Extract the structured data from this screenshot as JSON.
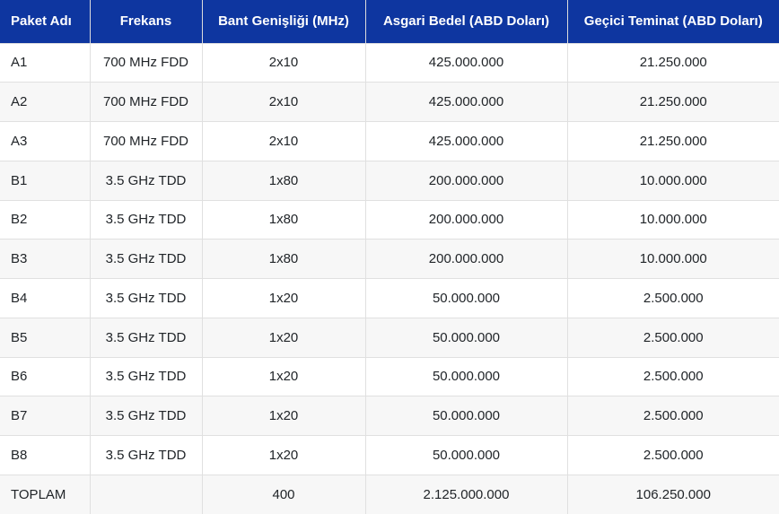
{
  "colors": {
    "header_bg": "#0e36a0",
    "header_text": "#ffffff",
    "stripe_bg": "#f7f7f7",
    "border": "#e0e0e0",
    "body_text": "#212529"
  },
  "table": {
    "columns": [
      "Paket Adı",
      "Frekans",
      "Bant Genişliği (MHz)",
      "Asgari Bedel (ABD Doları)",
      "Geçici Teminat (ABD Doları)"
    ],
    "rows": [
      [
        "A1",
        "700 MHz FDD",
        "2x10",
        "425.000.000",
        "21.250.000"
      ],
      [
        "A2",
        "700 MHz FDD",
        "2x10",
        "425.000.000",
        "21.250.000"
      ],
      [
        "A3",
        "700 MHz FDD",
        "2x10",
        "425.000.000",
        "21.250.000"
      ],
      [
        "B1",
        "3.5 GHz TDD",
        "1x80",
        "200.000.000",
        "10.000.000"
      ],
      [
        "B2",
        "3.5 GHz TDD",
        "1x80",
        "200.000.000",
        "10.000.000"
      ],
      [
        "B3",
        "3.5 GHz TDD",
        "1x80",
        "200.000.000",
        "10.000.000"
      ],
      [
        "B4",
        "3.5 GHz TDD",
        "1x20",
        "50.000.000",
        "2.500.000"
      ],
      [
        "B5",
        "3.5 GHz TDD",
        "1x20",
        "50.000.000",
        "2.500.000"
      ],
      [
        "B6",
        "3.5 GHz TDD",
        "1x20",
        "50.000.000",
        "2.500.000"
      ],
      [
        "B7",
        "3.5 GHz TDD",
        "1x20",
        "50.000.000",
        "2.500.000"
      ],
      [
        "B8",
        "3.5 GHz TDD",
        "1x20",
        "50.000.000",
        "2.500.000"
      ],
      [
        "TOPLAM",
        "",
        "400",
        "2.125.000.000",
        "106.250.000"
      ]
    ]
  }
}
